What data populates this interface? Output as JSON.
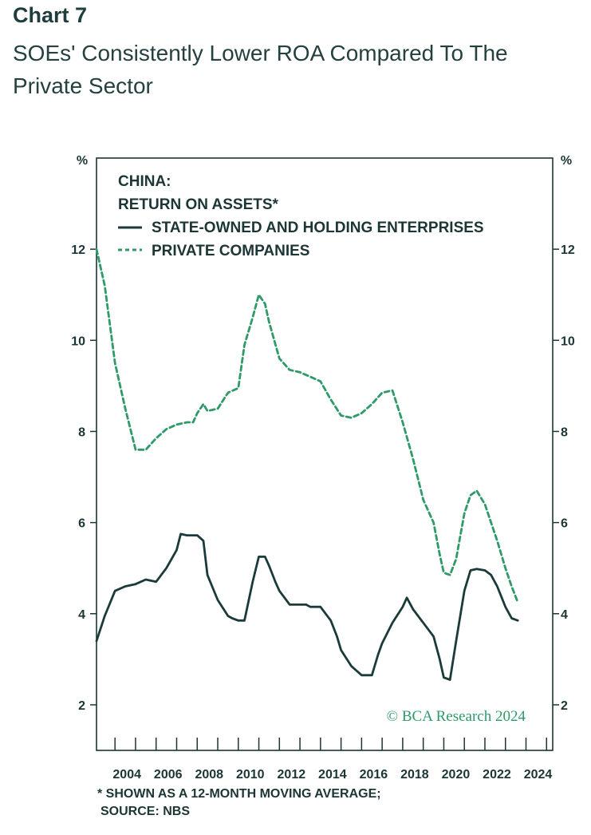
{
  "header": {
    "label": "Chart 7",
    "title": "SOEs' Consistently Lower ROA Compared To The Private Sector"
  },
  "chart_data": {
    "type": "line",
    "title": "CHINA:",
    "subtitle": "RETURN ON ASSETS*",
    "ylabel_left": "%",
    "ylabel_right": "%",
    "ylim": [
      1,
      14
    ],
    "yticks": [
      2,
      4,
      6,
      8,
      10,
      12
    ],
    "xlim": [
      2003.1,
      2025.3
    ],
    "xticks": [
      2004,
      2006,
      2008,
      2010,
      2012,
      2014,
      2016,
      2018,
      2020,
      2022,
      2024
    ],
    "xtick_labels": [
      "2004",
      "2006",
      "2008",
      "2010",
      "2012",
      "2014",
      "2016",
      "2018",
      "2020",
      "2022",
      "2024"
    ],
    "series": [
      {
        "name": "STATE-OWNED AND HOLDING ENTERPRISES",
        "style": "solid",
        "color": "#1b3a3a",
        "x": [
          2003.1,
          2003.5,
          2004.0,
          2004.5,
          2005.0,
          2005.5,
          2006.0,
          2006.5,
          2007.0,
          2007.2,
          2007.5,
          2008.0,
          2008.3,
          2008.5,
          2009.0,
          2009.5,
          2009.7,
          2010.0,
          2010.3,
          2010.7,
          2011.0,
          2011.3,
          2011.5,
          2011.8,
          2012.0,
          2012.5,
          2013.0,
          2013.3,
          2013.5,
          2014.0,
          2014.5,
          2014.8,
          2015.0,
          2015.5,
          2016.0,
          2016.5,
          2016.8,
          2017.0,
          2017.5,
          2018.0,
          2018.2,
          2018.5,
          2019.0,
          2019.5,
          2019.8,
          2020.0,
          2020.3,
          2020.6,
          2021.0,
          2021.3,
          2021.6,
          2022.0,
          2022.3,
          2022.6,
          2023.0,
          2023.3,
          2023.6
        ],
        "values": [
          3.4,
          3.95,
          4.5,
          4.6,
          4.65,
          4.75,
          4.7,
          5.0,
          5.4,
          5.75,
          5.72,
          5.72,
          5.6,
          4.85,
          4.3,
          3.95,
          3.9,
          3.85,
          3.85,
          4.7,
          5.25,
          5.25,
          5.05,
          4.7,
          4.5,
          4.2,
          4.2,
          4.2,
          4.15,
          4.15,
          3.85,
          3.5,
          3.2,
          2.85,
          2.65,
          2.65,
          3.1,
          3.35,
          3.8,
          4.15,
          4.35,
          4.1,
          3.8,
          3.5,
          3.0,
          2.6,
          2.55,
          3.4,
          4.5,
          4.95,
          4.98,
          4.95,
          4.85,
          4.6,
          4.15,
          3.9,
          3.85
        ]
      },
      {
        "name": "PRIVATE COMPANIES",
        "style": "dashed",
        "color": "#2e9a68",
        "x": [
          2003.1,
          2003.5,
          2004.0,
          2004.5,
          2005.0,
          2005.5,
          2006.0,
          2006.5,
          2007.0,
          2007.5,
          2007.8,
          2008.0,
          2008.3,
          2008.5,
          2009.0,
          2009.5,
          2010.0,
          2010.3,
          2010.7,
          2011.0,
          2011.3,
          2011.5,
          2012.0,
          2012.5,
          2013.0,
          2013.5,
          2014.0,
          2014.5,
          2015.0,
          2015.5,
          2016.0,
          2016.5,
          2017.0,
          2017.5,
          2018.0,
          2018.5,
          2019.0,
          2019.5,
          2019.8,
          2020.0,
          2020.3,
          2020.6,
          2021.0,
          2021.3,
          2021.6,
          2022.0,
          2022.3,
          2022.6,
          2023.0,
          2023.3,
          2023.6
        ],
        "values": [
          12.0,
          11.2,
          9.5,
          8.5,
          7.6,
          7.6,
          7.85,
          8.05,
          8.15,
          8.2,
          8.2,
          8.4,
          8.6,
          8.45,
          8.5,
          8.85,
          8.95,
          9.9,
          10.5,
          11.0,
          10.8,
          10.4,
          9.6,
          9.35,
          9.3,
          9.2,
          9.1,
          8.7,
          8.35,
          8.3,
          8.4,
          8.6,
          8.85,
          8.9,
          8.2,
          7.4,
          6.5,
          6.0,
          5.3,
          4.9,
          4.85,
          5.2,
          6.2,
          6.6,
          6.7,
          6.4,
          6.0,
          5.6,
          5.0,
          4.6,
          4.25
        ]
      }
    ]
  },
  "watermark": "© BCA Research 2024",
  "footnote": {
    "line1": "* SHOWN AS A 12-MONTH MOVING AVERAGE;",
    "line2": "SOURCE: NBS"
  }
}
